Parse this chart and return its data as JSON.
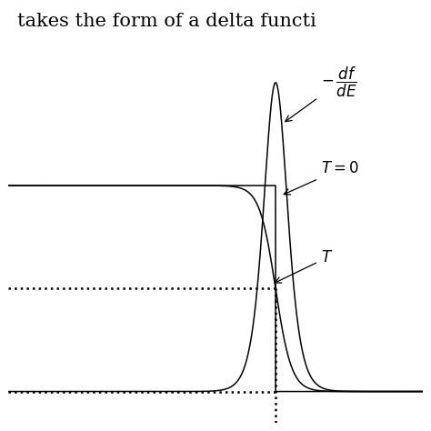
{
  "title_text": "takes the form of a delta functi",
  "title_fontsize": 15,
  "fermi_mu": 0.0,
  "T_finite": 0.03,
  "x_min": -1.0,
  "x_max": 0.55,
  "y_min": -0.15,
  "y_max": 1.65,
  "dotted_line_upper_y": 0.5,
  "dotted_line_lower_y": 0.0,
  "line_color": "black",
  "background": "white",
  "peak_scale": 1.5,
  "figsize": [
    4.74,
    4.74
  ],
  "dpi": 100
}
